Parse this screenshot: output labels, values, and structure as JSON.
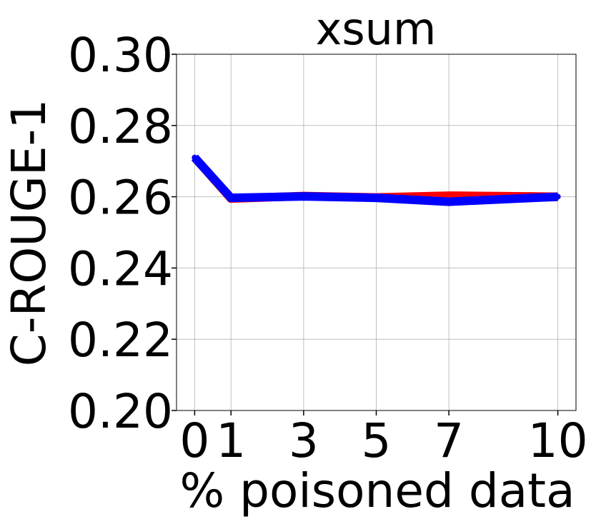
{
  "chart_data": {
    "type": "line",
    "title": "xsum",
    "xlabel": "% poisoned data",
    "ylabel": "C-ROUGE-1",
    "x": [
      0,
      1,
      3,
      5,
      7,
      10
    ],
    "xticks": [
      "0",
      "1",
      "3",
      "5",
      "7",
      "10"
    ],
    "yticks": [
      "0.20",
      "0.22",
      "0.24",
      "0.26",
      "0.28",
      "0.30"
    ],
    "ylim": [
      0.2,
      0.3
    ],
    "xlim": [
      -0.5,
      10.5
    ],
    "grid": true,
    "series": [
      {
        "color": "#ff0000",
        "values": [
          0.271,
          0.2595,
          0.2602,
          0.2598,
          0.2603,
          0.26
        ]
      },
      {
        "color": "#0000ff",
        "values": [
          0.271,
          0.2597,
          0.2601,
          0.2597,
          0.2586,
          0.26
        ]
      }
    ]
  }
}
